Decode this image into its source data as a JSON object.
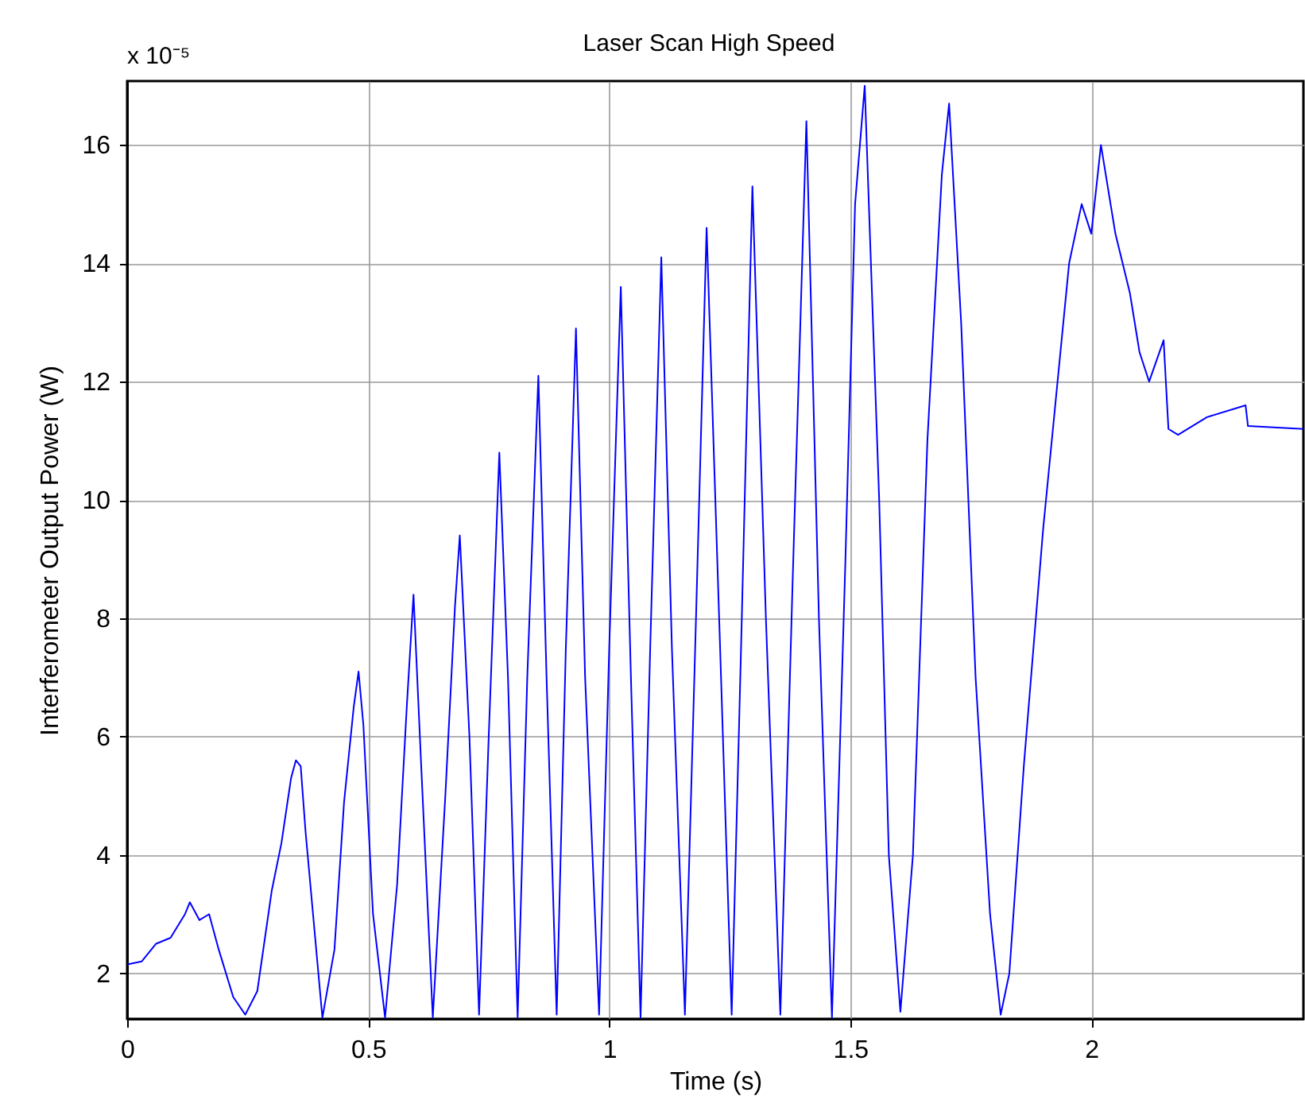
{
  "chart_data": {
    "type": "line",
    "title": "Laser Scan High Speed",
    "xlabel": "Time (s)",
    "ylabel": "Interferometer Output Power (W)",
    "annotations": [
      "x 10⁻⁵"
    ],
    "xlim": [
      0,
      2.44
    ],
    "ylim": [
      1.23,
      17.08
    ],
    "xticks": [
      0,
      0.5,
      1,
      1.5,
      2
    ],
    "yticks": [
      2,
      4,
      6,
      8,
      10,
      12,
      14,
      16
    ],
    "grid": true,
    "marker": "none",
    "line_style": "solid",
    "x": [
      0,
      0.03,
      0.06,
      0.09,
      0.12,
      0.13,
      0.15,
      0.17,
      0.19,
      0.22,
      0.245,
      0.27,
      0.3,
      0.32,
      0.34,
      0.35,
      0.36,
      0.37,
      0.39,
      0.405,
      0.43,
      0.45,
      0.47,
      0.48,
      0.49,
      0.51,
      0.535,
      0.56,
      0.58,
      0.594,
      0.61,
      0.634,
      0.66,
      0.68,
      0.69,
      0.71,
      0.73,
      0.75,
      0.772,
      0.79,
      0.81,
      0.83,
      0.853,
      0.87,
      0.891,
      0.91,
      0.931,
      0.95,
      0.979,
      1.0,
      1.024,
      1.045,
      1.065,
      1.085,
      1.108,
      1.13,
      1.157,
      1.18,
      1.202,
      1.23,
      1.254,
      1.275,
      1.297,
      1.325,
      1.355,
      1.38,
      1.409,
      1.435,
      1.462,
      1.49,
      1.51,
      1.53,
      1.56,
      1.58,
      1.604,
      1.63,
      1.66,
      1.69,
      1.705,
      1.73,
      1.76,
      1.79,
      1.812,
      1.83,
      1.86,
      1.9,
      1.93,
      1.954,
      1.98,
      2.0,
      2.02,
      2.05,
      2.08,
      2.1,
      2.12,
      2.15,
      2.16,
      2.18,
      2.24,
      2.32,
      2.325,
      2.44
    ],
    "series": [
      {
        "color": "#0000ff",
        "values": [
          2.15,
          2.2,
          2.5,
          2.6,
          3.0,
          3.2,
          2.9,
          3.0,
          2.4,
          1.6,
          1.3,
          1.7,
          3.4,
          4.2,
          5.3,
          5.6,
          5.5,
          4.4,
          2.6,
          1.25,
          2.4,
          4.9,
          6.5,
          7.1,
          6.2,
          3.0,
          1.25,
          3.5,
          6.5,
          8.4,
          5.5,
          1.25,
          5.0,
          8.2,
          9.4,
          6.0,
          1.3,
          6.0,
          10.8,
          7.0,
          1.25,
          7.0,
          12.1,
          7.0,
          1.3,
          7.5,
          12.9,
          7.0,
          1.3,
          7.5,
          13.6,
          7.0,
          1.25,
          7.5,
          14.1,
          7.5,
          1.3,
          8.0,
          14.6,
          7.5,
          1.3,
          8.0,
          15.3,
          8.0,
          1.3,
          8.5,
          16.4,
          8.0,
          1.25,
          9.0,
          15.0,
          17.0,
          10.0,
          4.0,
          1.35,
          4.0,
          11.0,
          15.5,
          16.7,
          13.0,
          7.0,
          3.0,
          1.3,
          2.0,
          5.5,
          9.5,
          12.0,
          14.0,
          15.0,
          14.5,
          16.0,
          14.5,
          13.5,
          12.5,
          12.0,
          12.7,
          11.2,
          11.1,
          11.4,
          11.6,
          11.25,
          11.2
        ]
      }
    ]
  }
}
